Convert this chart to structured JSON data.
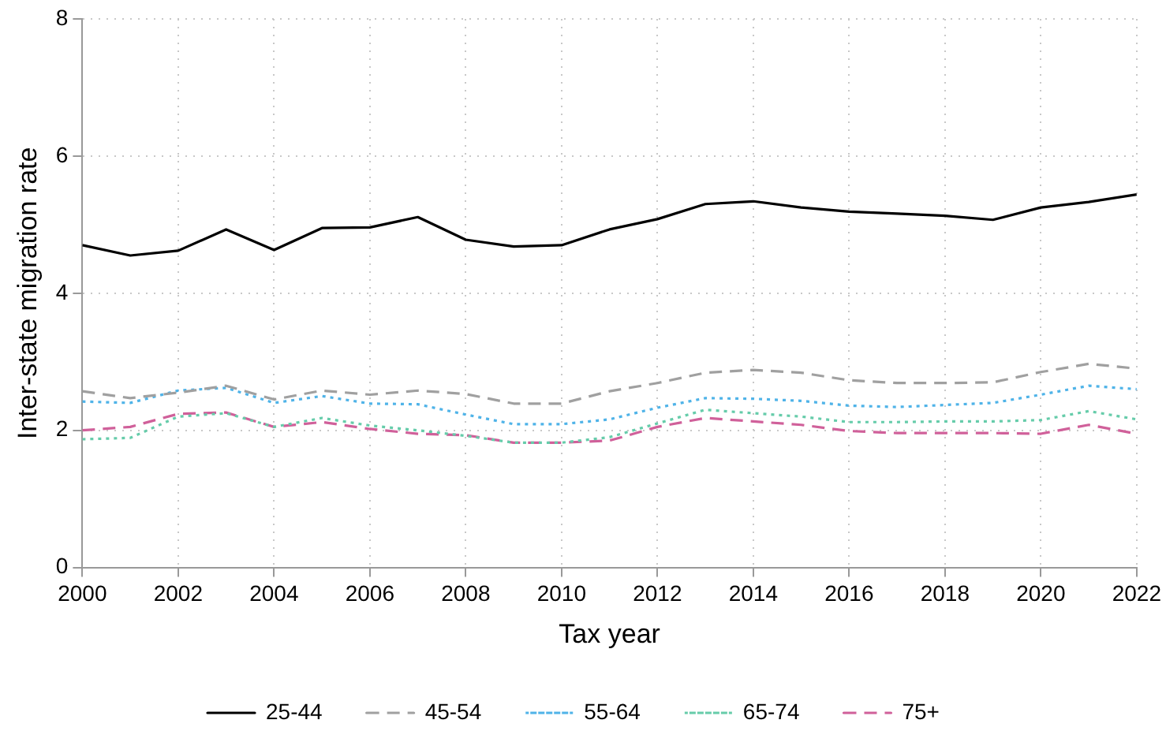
{
  "chart_data": {
    "type": "line",
    "xlabel": "Tax year",
    "ylabel": "Inter-state migration rate",
    "x": [
      2000,
      2001,
      2002,
      2003,
      2004,
      2005,
      2006,
      2007,
      2008,
      2009,
      2010,
      2011,
      2012,
      2013,
      2014,
      2015,
      2016,
      2017,
      2018,
      2019,
      2020,
      2021,
      2022
    ],
    "series": [
      {
        "name": "25-44",
        "color": "#000000",
        "line_style": "solid",
        "values": [
          4.7,
          4.55,
          4.62,
          4.93,
          4.63,
          4.95,
          4.96,
          5.11,
          4.78,
          4.68,
          4.7,
          4.93,
          5.08,
          5.3,
          5.34,
          5.25,
          5.19,
          5.16,
          5.13,
          5.07,
          5.25,
          5.33,
          5.44
        ]
      },
      {
        "name": "45-54",
        "color": "#a0a0a0",
        "line_style": "dashed",
        "values": [
          2.57,
          2.47,
          2.55,
          2.65,
          2.45,
          2.58,
          2.52,
          2.58,
          2.53,
          2.39,
          2.39,
          2.57,
          2.69,
          2.84,
          2.88,
          2.84,
          2.73,
          2.69,
          2.69,
          2.7,
          2.85,
          2.97,
          2.9
        ]
      },
      {
        "name": "55-64",
        "color": "#4fb3e8",
        "line_style": "dotted",
        "values": [
          2.42,
          2.4,
          2.58,
          2.62,
          2.4,
          2.5,
          2.39,
          2.38,
          2.23,
          2.09,
          2.09,
          2.16,
          2.33,
          2.47,
          2.46,
          2.43,
          2.36,
          2.34,
          2.37,
          2.4,
          2.52,
          2.65,
          2.6
        ]
      },
      {
        "name": "65-74",
        "color": "#66ccaa",
        "line_style": "dotted",
        "values": [
          1.87,
          1.89,
          2.2,
          2.25,
          2.05,
          2.18,
          2.07,
          2.0,
          1.92,
          1.82,
          1.82,
          1.9,
          2.1,
          2.3,
          2.25,
          2.2,
          2.12,
          2.12,
          2.13,
          2.13,
          2.15,
          2.28,
          2.16
        ]
      },
      {
        "name": "75+",
        "color": "#d0609a",
        "line_style": "dashed",
        "values": [
          2.0,
          2.05,
          2.24,
          2.26,
          2.05,
          2.12,
          2.02,
          1.95,
          1.93,
          1.82,
          1.82,
          1.85,
          2.05,
          2.18,
          2.13,
          2.08,
          1.99,
          1.96,
          1.96,
          1.96,
          1.95,
          2.08,
          1.95
        ]
      }
    ],
    "xlim": [
      2000,
      2022
    ],
    "xticks": [
      2000,
      2002,
      2004,
      2006,
      2008,
      2010,
      2012,
      2014,
      2016,
      2018,
      2020,
      2022
    ],
    "ylim": [
      0,
      8
    ],
    "yticks": [
      0,
      2,
      4,
      6,
      8
    ],
    "grid": true,
    "legend": "bottom",
    "marker": "none"
  }
}
